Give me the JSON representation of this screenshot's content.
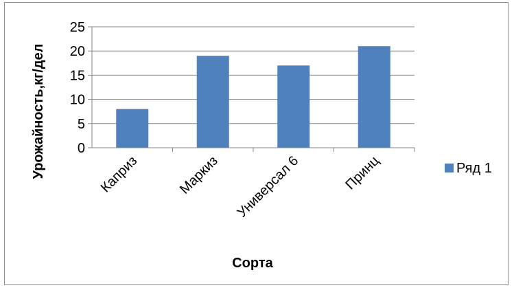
{
  "chart_data": {
    "type": "bar",
    "categories": [
      "Каприз",
      "Маркиз",
      "Универсал 6",
      "Принц"
    ],
    "series": [
      {
        "name": "Ряд 1",
        "values": [
          8,
          19,
          17,
          21
        ],
        "color": "#4f81bd"
      }
    ],
    "title": "",
    "xlabel": "Сорта",
    "ylabel": "Урожайность,кг/дел",
    "ylim": [
      0,
      25
    ],
    "yticks": [
      "0",
      "5",
      "10",
      "15",
      "20",
      "25"
    ],
    "grid": true,
    "legend_position": "right"
  }
}
